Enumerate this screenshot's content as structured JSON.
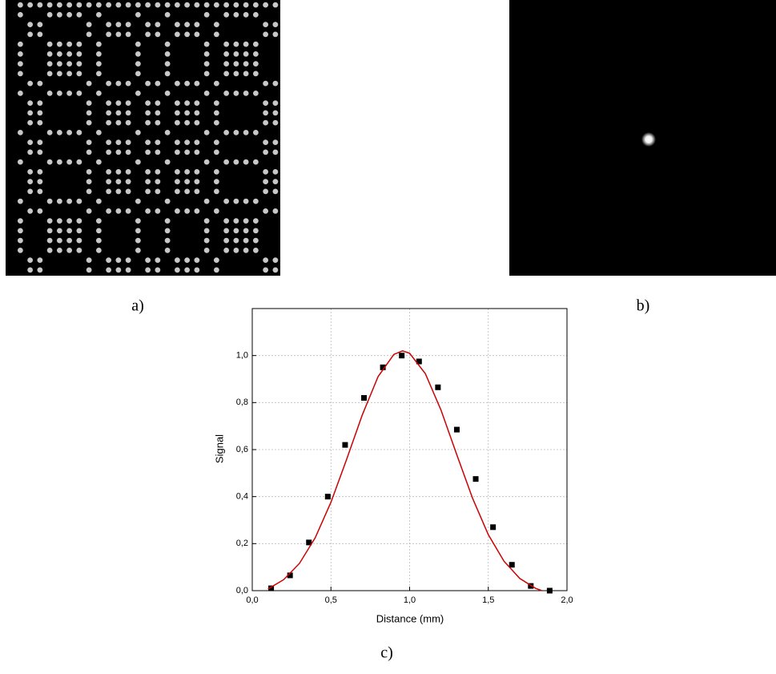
{
  "panels": {
    "a": "a)",
    "b": "b)",
    "c": "c)"
  },
  "chart_data": {
    "type": "scatter",
    "xlabel": "Distance (mm)",
    "ylabel": "Signal",
    "xlim": [
      0,
      2
    ],
    "ylim": [
      0,
      1.2
    ],
    "xticks": [
      {
        "value": 0,
        "label": "0,0"
      },
      {
        "value": 0.5,
        "label": "0,5"
      },
      {
        "value": 1,
        "label": "1,0"
      },
      {
        "value": 1.5,
        "label": "1,5"
      },
      {
        "value": 2,
        "label": "2,0"
      }
    ],
    "yticks": [
      {
        "value": 0,
        "label": "0,0"
      },
      {
        "value": 0.2,
        "label": "0,2"
      },
      {
        "value": 0.4,
        "label": "0,4"
      },
      {
        "value": 0.6,
        "label": "0,6"
      },
      {
        "value": 0.8,
        "label": "0,8"
      },
      {
        "value": 1,
        "label": "1,0"
      }
    ],
    "grid": true,
    "series": [
      {
        "type": "scatter",
        "color": "#000000",
        "x": [
          0.12,
          0.24,
          0.36,
          0.48,
          0.59,
          0.71,
          0.83,
          0.95,
          1.06,
          1.18,
          1.3,
          1.42,
          1.53,
          1.65,
          1.77,
          1.89
        ],
        "values": [
          0.01,
          0.065,
          0.205,
          0.4,
          0.62,
          0.82,
          0.95,
          1.0,
          0.975,
          0.865,
          0.685,
          0.475,
          0.27,
          0.11,
          0.02,
          0.0
        ]
      },
      {
        "type": "line",
        "color": "#cc0000",
        "x": [
          0.1,
          0.2,
          0.3,
          0.4,
          0.5,
          0.6,
          0.7,
          0.8,
          0.9,
          0.955,
          1.0,
          1.1,
          1.2,
          1.3,
          1.4,
          1.5,
          1.6,
          1.7,
          1.8,
          1.84
        ],
        "values": [
          0.007,
          0.047,
          0.116,
          0.225,
          0.376,
          0.559,
          0.749,
          0.911,
          1.005,
          1.02,
          1.01,
          0.923,
          0.767,
          0.578,
          0.393,
          0.238,
          0.125,
          0.052,
          0.01,
          0.0
        ]
      }
    ]
  }
}
